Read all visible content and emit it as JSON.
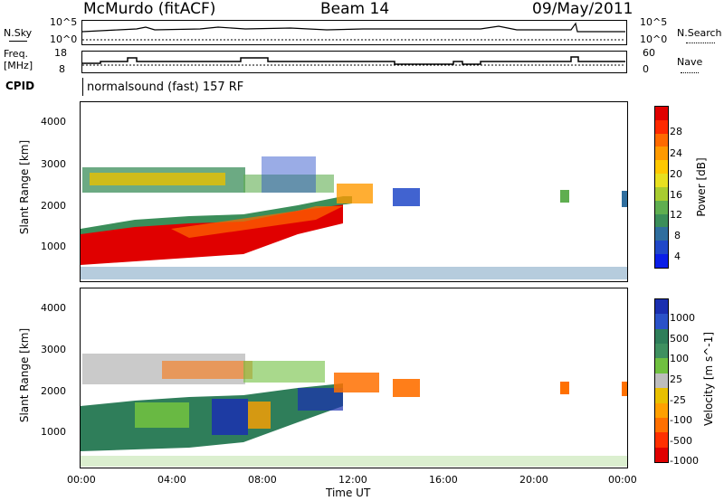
{
  "header": {
    "station": "McMurdo (fitACF)",
    "beam": "Beam 14",
    "date": "09/May/2011"
  },
  "top_panels": {
    "nsky_label": "N.Sky",
    "nsky_ticks": [
      "10^5",
      "10^0"
    ],
    "nsearch_label": "N.Search",
    "nsearch_ticks": [
      "10^5",
      "10^0"
    ],
    "freq_label_line1": "Freq.",
    "freq_label_line2": "[MHz]",
    "freq_ticks": [
      "18",
      "8"
    ],
    "nave_label": "Nave",
    "nave_ticks": [
      "60",
      "0"
    ],
    "cpid_label": "CPID",
    "cpid_text": "normalsound (fast) 157 RF"
  },
  "axes": {
    "ylabel": "Slant Range [km]",
    "xlabel": "Time UT",
    "yticks": [
      "4000",
      "3000",
      "2000",
      "1000"
    ],
    "xticks": [
      "00:00",
      "04:00",
      "08:00",
      "12:00",
      "16:00",
      "20:00",
      "00:00"
    ]
  },
  "power_colorbar": {
    "label": "Power [dB]",
    "ticks": [
      "28",
      "24",
      "20",
      "16",
      "12",
      "8",
      "4"
    ],
    "colors": [
      "#e00000",
      "#ff2a00",
      "#ff6a00",
      "#ff9a00",
      "#ffc800",
      "#e8e020",
      "#a8cc30",
      "#5fae50",
      "#3b8e5a",
      "#2f6e9e",
      "#2048c8",
      "#0a1ee8"
    ]
  },
  "velocity_colorbar": {
    "label": "Velocity [m s^-1]",
    "ticks": [
      "1000",
      "500",
      "100",
      "25",
      "-25",
      "-100",
      "-500",
      "-1000"
    ],
    "colors": [
      "#1a2fb0",
      "#2a52c8",
      "#2f7e5a",
      "#3f9060",
      "#70c040",
      "#bdbdbd",
      "#e8c000",
      "#ffa000",
      "#ff7000",
      "#ff3000",
      "#e00000"
    ]
  },
  "chart_data": [
    {
      "type": "heatmap",
      "title": "Power",
      "xlabel": "Time UT",
      "ylabel": "Slant Range [km]",
      "xlim": [
        0,
        24
      ],
      "ylim": [
        180,
        4600
      ],
      "colorbar_label": "Power [dB]",
      "colorbar_range": [
        0,
        30
      ],
      "regions": [
        {
          "name": "near-range band",
          "t_start": 0.0,
          "t_end": 13.0,
          "range_start": 500,
          "range_end": 1500,
          "value_approx": 28
        },
        {
          "name": "far-range band",
          "t_start": 0.0,
          "t_end": 12.5,
          "range_start": 1900,
          "range_end": 2800,
          "value_approx": 12
        },
        {
          "name": "mid echoes",
          "t_start": 13.8,
          "t_end": 15.2,
          "range_start": 1700,
          "range_end": 2300,
          "value_approx": 8
        },
        {
          "name": "ground scatter",
          "t_start": 0.0,
          "t_end": 24.0,
          "range_start": 180,
          "range_end": 450,
          "value_approx": 6
        }
      ]
    },
    {
      "type": "heatmap",
      "title": "Velocity",
      "xlabel": "Time UT",
      "ylabel": "Slant Range [km]",
      "xlim": [
        0,
        24
      ],
      "ylim": [
        180,
        4600
      ],
      "colorbar_label": "Velocity [m s^-1]",
      "colorbar_range": [
        -1000,
        1000
      ],
      "regions": [
        {
          "name": "near-range band",
          "t_start": 0.0,
          "t_end": 11.5,
          "range_start": 500,
          "range_end": 1500,
          "value_approx": 100
        },
        {
          "name": "far-range band",
          "t_start": 0.0,
          "t_end": 11.0,
          "range_start": 2000,
          "range_end": 2800,
          "value_approx": 25
        },
        {
          "name": "orange patch",
          "t_start": 11.0,
          "t_end": 15.2,
          "range_start": 1600,
          "range_end": 2300,
          "value_approx": -300
        }
      ]
    }
  ]
}
